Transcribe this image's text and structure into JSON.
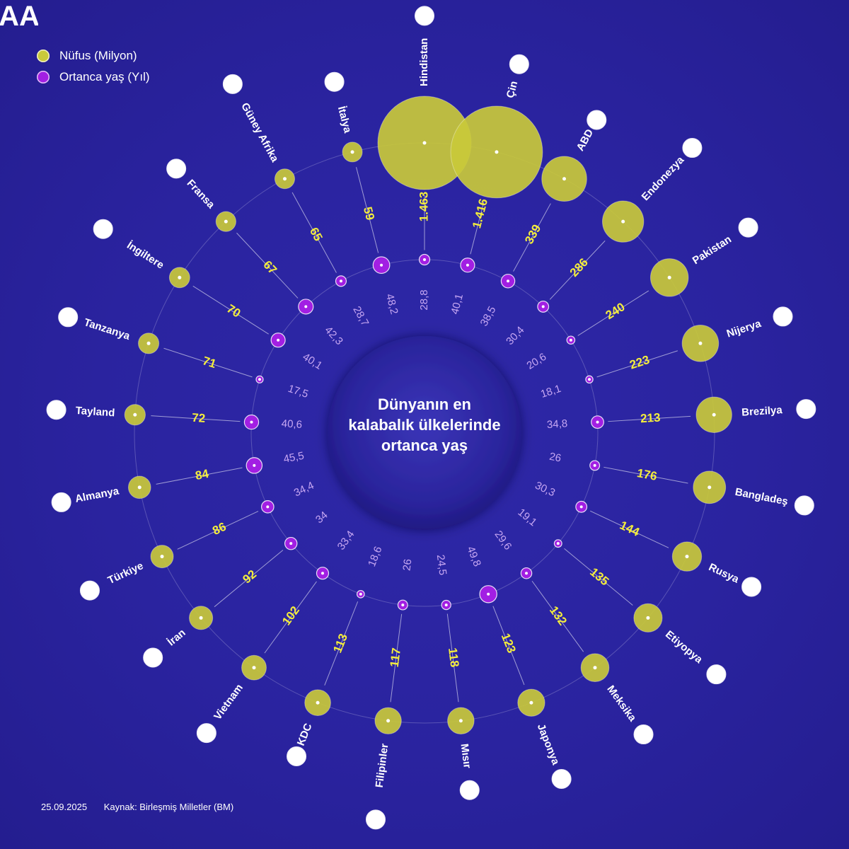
{
  "legend": {
    "population_label": "Nüfus (Milyon)",
    "age_label": "Ortanca yaş (Yıl)"
  },
  "title": "Dünyanın en kalabalık ülkelerinde ortanca yaş",
  "footer": {
    "date": "25.09.2025",
    "source": "Kaynak: Birleşmiş Milletler (BM)"
  },
  "logo_text": "AA",
  "colors": {
    "population": "#c9c93a",
    "age": "#a21fe3",
    "pop_label": "#f4ed3c",
    "age_label": "#c6a6f2"
  },
  "chart_data": {
    "type": "radial-bubble",
    "title": "Dünyanın en kalabalık ülkelerinde ortanca yaş",
    "series": [
      {
        "name": "Nüfus (Milyon)",
        "unit": "milyon"
      },
      {
        "name": "Ortanca yaş (Yıl)",
        "unit": "yıl"
      }
    ],
    "countries": [
      {
        "name": "Hindistan",
        "population": 1463,
        "pop_label": "1.463",
        "median_age": 28.8,
        "age_label": "28,8"
      },
      {
        "name": "Çin",
        "population": 1416,
        "pop_label": "1.416",
        "median_age": 40.1,
        "age_label": "40,1"
      },
      {
        "name": "ABD",
        "population": 339,
        "pop_label": "339",
        "median_age": 38.5,
        "age_label": "38,5"
      },
      {
        "name": "Endonezya",
        "population": 286,
        "pop_label": "286",
        "median_age": 30.4,
        "age_label": "30,4"
      },
      {
        "name": "Pakistan",
        "population": 240,
        "pop_label": "240",
        "median_age": 20.6,
        "age_label": "20,6"
      },
      {
        "name": "Nijerya",
        "population": 223,
        "pop_label": "223",
        "median_age": 18.1,
        "age_label": "18,1"
      },
      {
        "name": "Brezilya",
        "population": 213,
        "pop_label": "213",
        "median_age": 34.8,
        "age_label": "34,8"
      },
      {
        "name": "Bangladeş",
        "population": 176,
        "pop_label": "176",
        "median_age": 26,
        "age_label": "26"
      },
      {
        "name": "Rusya",
        "population": 144,
        "pop_label": "144",
        "median_age": 30.3,
        "age_label": "30,3"
      },
      {
        "name": "Etiyopya",
        "population": 135,
        "pop_label": "135",
        "median_age": 19.1,
        "age_label": "19,1"
      },
      {
        "name": "Meksika",
        "population": 132,
        "pop_label": "132",
        "median_age": 29.6,
        "age_label": "29,6"
      },
      {
        "name": "Japonya",
        "population": 123,
        "pop_label": "123",
        "median_age": 49.8,
        "age_label": "49,8"
      },
      {
        "name": "Mısır",
        "population": 118,
        "pop_label": "118",
        "median_age": 24.5,
        "age_label": "24,5"
      },
      {
        "name": "Filipinler",
        "population": 117,
        "pop_label": "117",
        "median_age": 26,
        "age_label": "26"
      },
      {
        "name": "KDC",
        "population": 113,
        "pop_label": "113",
        "median_age": 18.6,
        "age_label": "18,6"
      },
      {
        "name": "Vietnam",
        "population": 102,
        "pop_label": "102",
        "median_age": 33.4,
        "age_label": "33,4"
      },
      {
        "name": "İran",
        "population": 92,
        "pop_label": "92",
        "median_age": 34,
        "age_label": "34"
      },
      {
        "name": "Türkiye",
        "population": 86,
        "pop_label": "86",
        "median_age": 34.4,
        "age_label": "34,4"
      },
      {
        "name": "Almanya",
        "population": 84,
        "pop_label": "84",
        "median_age": 45.5,
        "age_label": "45,5"
      },
      {
        "name": "Tayland",
        "population": 72,
        "pop_label": "72",
        "median_age": 40.6,
        "age_label": "40,6"
      },
      {
        "name": "Tanzanya",
        "population": 71,
        "pop_label": "71",
        "median_age": 17.5,
        "age_label": "17,5"
      },
      {
        "name": "İngiltere",
        "population": 70,
        "pop_label": "70",
        "median_age": 40.1,
        "age_label": "40,1"
      },
      {
        "name": "Fransa",
        "population": 67,
        "pop_label": "67",
        "median_age": 42.3,
        "age_label": "42,3"
      },
      {
        "name": "Güney Afrika",
        "population": 65,
        "pop_label": "65",
        "median_age": 28.7,
        "age_label": "28,7"
      },
      {
        "name": "İtalya",
        "population": 59,
        "pop_label": "59",
        "median_age": 48.2,
        "age_label": "48,2"
      }
    ]
  }
}
